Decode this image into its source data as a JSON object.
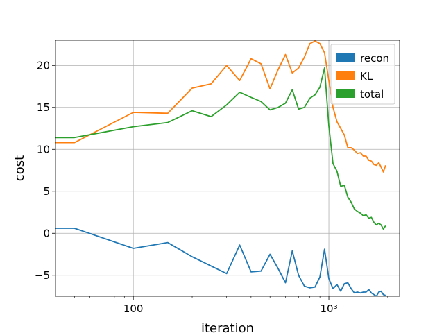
{
  "chart_data": {
    "type": "line",
    "xlabel": "iteration",
    "ylabel": "cost",
    "xscale": "log",
    "xlim": [
      40,
      2300
    ],
    "ylim": [
      -7.5,
      23
    ],
    "grid": true,
    "legend_position": "top-right",
    "x_ticks": [
      {
        "value": 100,
        "label": "100"
      },
      {
        "value": 1000,
        "label": "10³"
      }
    ],
    "y_ticks": [
      {
        "value": -5,
        "label": "−5"
      },
      {
        "value": 0,
        "label": "0"
      },
      {
        "value": 5,
        "label": "5"
      },
      {
        "value": 10,
        "label": "10"
      },
      {
        "value": 15,
        "label": "15"
      },
      {
        "value": 20,
        "label": "20"
      }
    ],
    "x": [
      40,
      50,
      100,
      150,
      200,
      250,
      300,
      350,
      400,
      450,
      500,
      550,
      600,
      650,
      700,
      750,
      800,
      850,
      900,
      950,
      1000,
      1050,
      1100,
      1150,
      1200,
      1250,
      1300,
      1350,
      1400,
      1450,
      1500,
      1550,
      1600,
      1650,
      1700,
      1750,
      1800,
      1850,
      1900,
      1950
    ],
    "series": [
      {
        "name": "recon",
        "color": "#1f77b4",
        "values": [
          0.6,
          0.6,
          -1.8,
          -1.1,
          -2.8,
          -3.9,
          -4.8,
          -1.4,
          -4.6,
          -4.5,
          -2.5,
          -4.2,
          -5.9,
          -2.1,
          -5.0,
          -6.3,
          -6.5,
          -6.4,
          -5.2,
          -1.9,
          -5.4,
          -6.6,
          -6.1,
          -6.9,
          -6.0,
          -5.9,
          -6.6,
          -7.1,
          -7.0,
          -7.1,
          -7.0,
          -7.0,
          -6.7,
          -7.1,
          -7.3,
          -7.5,
          -7.0,
          -6.9,
          -7.3,
          -7.4
        ]
      },
      {
        "name": "KL",
        "color": "#ff7f0e",
        "values": [
          10.8,
          10.8,
          14.4,
          14.3,
          17.3,
          17.8,
          20.0,
          18.2,
          20.8,
          20.2,
          17.2,
          19.5,
          21.3,
          19.1,
          19.7,
          21.0,
          22.6,
          22.9,
          22.6,
          21.5,
          18.2,
          15.0,
          13.3,
          12.5,
          11.7,
          10.2,
          10.2,
          9.9,
          9.5,
          9.6,
          9.2,
          9.2,
          8.7,
          8.6,
          8.2,
          8.1,
          8.4,
          7.9,
          7.3,
          8.1
        ]
      },
      {
        "name": "total",
        "color": "#2ca02c",
        "values": [
          11.4,
          11.4,
          12.7,
          13.2,
          14.6,
          13.9,
          15.3,
          16.8,
          16.2,
          15.7,
          14.7,
          15.0,
          15.5,
          17.1,
          14.8,
          15.0,
          16.1,
          16.5,
          17.4,
          19.7,
          12.8,
          8.3,
          7.4,
          5.6,
          5.7,
          4.3,
          3.7,
          2.9,
          2.6,
          2.4,
          2.1,
          2.2,
          1.8,
          1.9,
          1.3,
          1.0,
          1.2,
          1.0,
          0.5,
          0.9
        ]
      }
    ]
  }
}
